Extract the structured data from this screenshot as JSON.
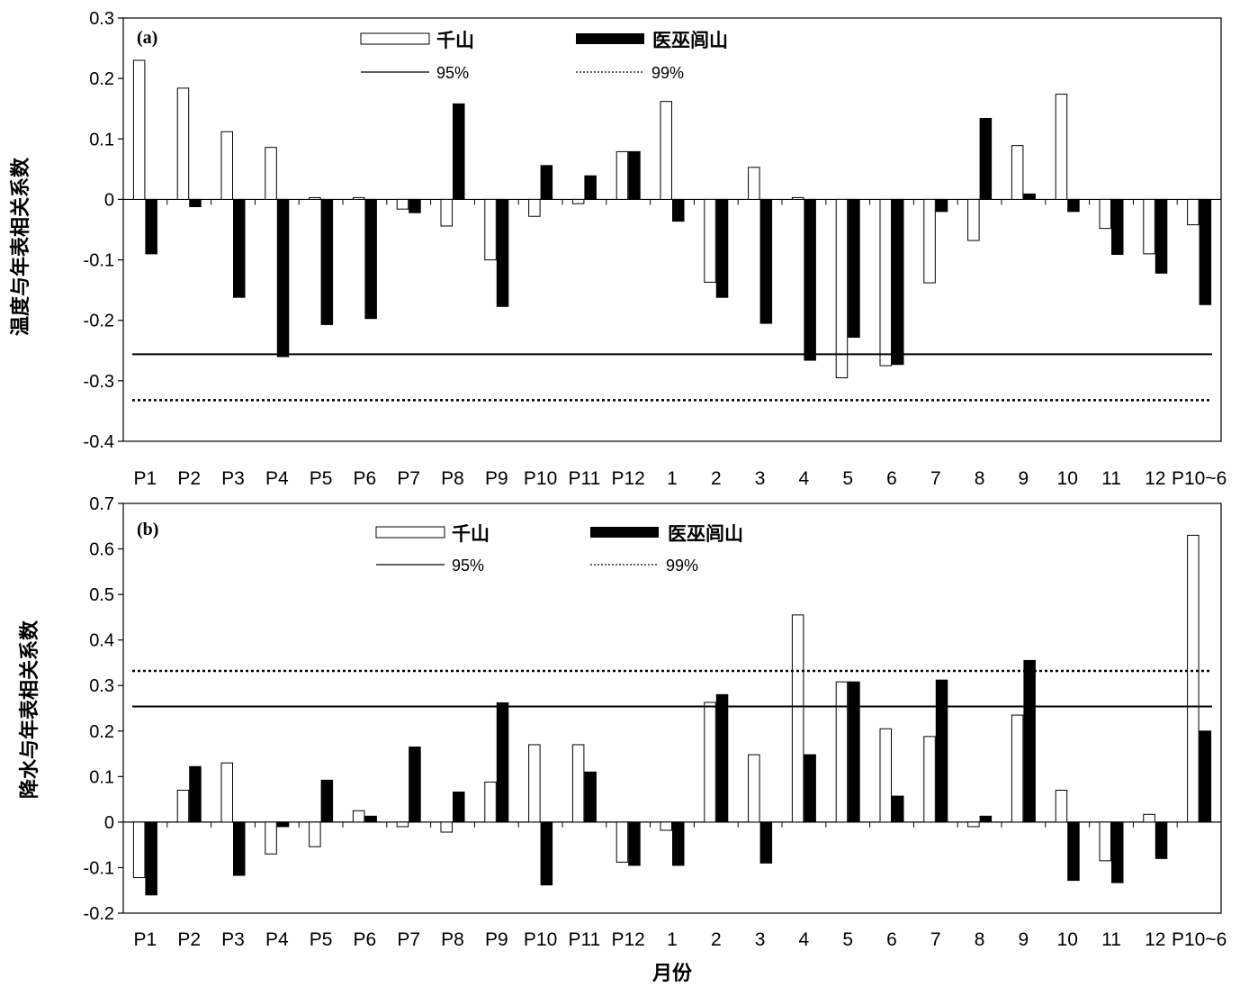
{
  "chart_data": [
    {
      "type": "bar",
      "panel_label": "(a)",
      "ylabel": "温度与年表相关系数",
      "xlabel": "",
      "ylim": [
        -0.4,
        0.3
      ],
      "yticks": [
        "0.3",
        "0.2",
        "0.1",
        "0",
        "-0.1",
        "-0.2",
        "-0.3",
        "-0.4"
      ],
      "ytick_values": [
        0.3,
        0.2,
        0.1,
        0,
        -0.1,
        -0.2,
        -0.3,
        -0.4
      ],
      "categories": [
        "P1",
        "P2",
        "P3",
        "P4",
        "P5",
        "P6",
        "P7",
        "P8",
        "P9",
        "P10",
        "P11",
        "P12",
        "1",
        "2",
        "3",
        "4",
        "5",
        "6",
        "7",
        "8",
        "9",
        "10",
        "11",
        "12",
        "P10~6"
      ],
      "series": [
        {
          "name": "千山",
          "fill": "#ffffff",
          "values": [
            0.23,
            0.184,
            0.112,
            0.086,
            0.003,
            0.003,
            -0.016,
            -0.044,
            -0.1,
            -0.028,
            -0.007,
            0.079,
            0.162,
            -0.137,
            0.053,
            0.003,
            -0.295,
            -0.275,
            -0.138,
            -0.068,
            0.089,
            0.174,
            -0.048,
            -0.09,
            -0.042
          ]
        },
        {
          "name": "医巫闾山",
          "fill": "#000000",
          "values": [
            -0.09,
            -0.012,
            -0.162,
            -0.26,
            -0.207,
            -0.197,
            -0.022,
            0.158,
            -0.177,
            0.056,
            0.039,
            0.079,
            -0.036,
            -0.162,
            -0.205,
            -0.266,
            -0.228,
            -0.273,
            -0.02,
            0.134,
            0.009,
            -0.02,
            -0.091,
            -0.122,
            -0.174
          ]
        }
      ],
      "reference_lines": [
        {
          "name": "95%",
          "value": -0.256,
          "style": "solid"
        },
        {
          "name": "99%",
          "value": -0.332,
          "style": "dotted"
        }
      ],
      "legend": {
        "bar1": "千山",
        "bar2": "医巫闾山",
        "line1": "95%",
        "line2": "99%"
      }
    },
    {
      "type": "bar",
      "panel_label": "(b)",
      "ylabel": "降水与年表相关系数",
      "xlabel": "月份",
      "ylim": [
        -0.2,
        0.7
      ],
      "yticks": [
        "0.7",
        "0.6",
        "0.5",
        "0.4",
        "0.3",
        "0.2",
        "0.1",
        "0",
        "-0.1",
        "-0.2"
      ],
      "ytick_values": [
        0.7,
        0.6,
        0.5,
        0.4,
        0.3,
        0.2,
        0.1,
        0,
        -0.1,
        -0.2
      ],
      "categories": [
        "P1",
        "P2",
        "P3",
        "P4",
        "P5",
        "P6",
        "P7",
        "P8",
        "P9",
        "P10",
        "P11",
        "P12",
        "1",
        "2",
        "3",
        "4",
        "5",
        "6",
        "7",
        "8",
        "9",
        "10",
        "11",
        "12",
        "P10~6"
      ],
      "series": [
        {
          "name": "千山",
          "fill": "#ffffff",
          "values": [
            -0.122,
            0.07,
            0.13,
            -0.07,
            -0.054,
            0.025,
            -0.01,
            -0.022,
            0.088,
            0.17,
            0.17,
            -0.088,
            -0.018,
            0.263,
            0.148,
            0.455,
            0.308,
            0.205,
            0.188,
            -0.01,
            0.235,
            0.07,
            -0.085,
            0.017,
            0.63
          ]
        },
        {
          "name": "医巫闾山",
          "fill": "#000000",
          "values": [
            -0.16,
            0.122,
            -0.117,
            -0.01,
            0.092,
            0.013,
            0.165,
            0.066,
            0.262,
            -0.138,
            0.11,
            -0.095,
            -0.095,
            0.28,
            -0.09,
            0.148,
            0.308,
            0.057,
            0.312,
            0.013,
            0.355,
            -0.128,
            -0.133,
            -0.08,
            0.2
          ]
        }
      ],
      "reference_lines": [
        {
          "name": "95%",
          "value": 0.254,
          "style": "solid"
        },
        {
          "name": "99%",
          "value": 0.332,
          "style": "dotted"
        }
      ],
      "legend": {
        "bar1": "千山",
        "bar2": "医巫闾山",
        "line1": "95%",
        "line2": "99%"
      }
    }
  ]
}
